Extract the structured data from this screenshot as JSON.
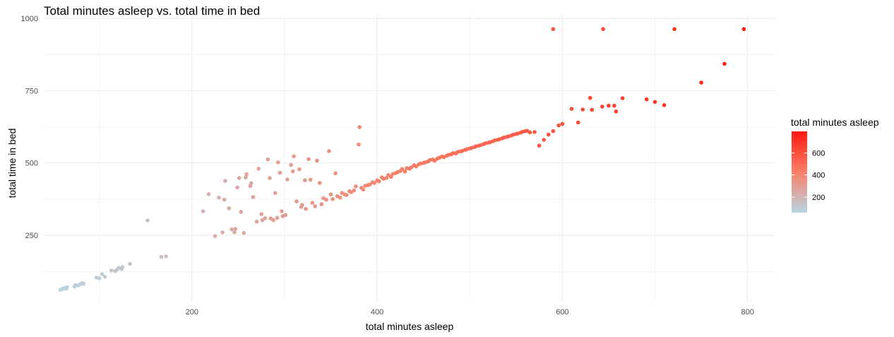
{
  "chart_data": {
    "type": "scatter",
    "title": "Total minutes asleep vs. total time in bed",
    "xlabel": "total minutes asleep",
    "ylabel": "total time in bed",
    "xlim": [
      40,
      830
    ],
    "ylim": [
      20,
      1010
    ],
    "x_ticks": [
      200,
      400,
      600,
      800
    ],
    "x_tick_labels": [
      "200",
      "400",
      "600",
      "800"
    ],
    "y_ticks": [
      250,
      500,
      750,
      1000
    ],
    "y_tick_labels": [
      "250",
      "500",
      "750",
      "1000"
    ],
    "grid": true,
    "legend": {
      "title": "total minutes asleep",
      "position": "right",
      "range": [
        58,
        796
      ],
      "ticks": [
        200,
        400,
        600
      ],
      "tick_labels": [
        "200",
        "400",
        "600"
      ],
      "colors": [
        "#b7d5e2",
        "#fa7f68",
        "#ff1a0d"
      ]
    },
    "points": [
      [
        58,
        61
      ],
      [
        60,
        64
      ],
      [
        62,
        67
      ],
      [
        64,
        65
      ],
      [
        65,
        70
      ],
      [
        73,
        72
      ],
      [
        74,
        78
      ],
      [
        77,
        76
      ],
      [
        79,
        80
      ],
      [
        81,
        84
      ],
      [
        83,
        82
      ],
      [
        97,
        103
      ],
      [
        100,
        101
      ],
      [
        103,
        115
      ],
      [
        106,
        106
      ],
      [
        113,
        128
      ],
      [
        117,
        126
      ],
      [
        119,
        130
      ],
      [
        121,
        137
      ],
      [
        124,
        133
      ],
      [
        125,
        140
      ],
      [
        133,
        151
      ],
      [
        152,
        301
      ],
      [
        167,
        175
      ],
      [
        172,
        177
      ],
      [
        212,
        333
      ],
      [
        218,
        392
      ],
      [
        225,
        247
      ],
      [
        229,
        380
      ],
      [
        233,
        260
      ],
      [
        235,
        373
      ],
      [
        236,
        438
      ],
      [
        240,
        343
      ],
      [
        243,
        270
      ],
      [
        246,
        260
      ],
      [
        247,
        272
      ],
      [
        249,
        415
      ],
      [
        251,
        448
      ],
      [
        253,
        331
      ],
      [
        256,
        258
      ],
      [
        258,
        450
      ],
      [
        259,
        461
      ],
      [
        263,
        420
      ],
      [
        264,
        430
      ],
      [
        266,
        382
      ],
      [
        270,
        297
      ],
      [
        272,
        480
      ],
      [
        275,
        323
      ],
      [
        276,
        302
      ],
      [
        279,
        309
      ],
      [
        282,
        512
      ],
      [
        284,
        448
      ],
      [
        285,
        308
      ],
      [
        288,
        302
      ],
      [
        290,
        396
      ],
      [
        292,
        310
      ],
      [
        293,
        502
      ],
      [
        295,
        466
      ],
      [
        297,
        333
      ],
      [
        298,
        316
      ],
      [
        301,
        320
      ],
      [
        303,
        443
      ],
      [
        307,
        493
      ],
      [
        309,
        471
      ],
      [
        310,
        523
      ],
      [
        313,
        367
      ],
      [
        316,
        478
      ],
      [
        318,
        348
      ],
      [
        319,
        355
      ],
      [
        322,
        440
      ],
      [
        323,
        341
      ],
      [
        326,
        513
      ],
      [
        328,
        442
      ],
      [
        330,
        362
      ],
      [
        333,
        350
      ],
      [
        335,
        508
      ],
      [
        338,
        431
      ],
      [
        340,
        357
      ],
      [
        342,
        378
      ],
      [
        345,
        373
      ],
      [
        348,
        541
      ],
      [
        350,
        391
      ],
      [
        352,
        375
      ],
      [
        355,
        464
      ],
      [
        357,
        385
      ],
      [
        360,
        380
      ],
      [
        362,
        396
      ],
      [
        365,
        391
      ],
      [
        367,
        389
      ],
      [
        370,
        402
      ],
      [
        372,
        399
      ],
      [
        375,
        405
      ],
      [
        377,
        419
      ],
      [
        380,
        564
      ],
      [
        381,
        624
      ],
      [
        383,
        414
      ],
      [
        385,
        408
      ],
      [
        387,
        421
      ],
      [
        390,
        423
      ],
      [
        392,
        425
      ],
      [
        395,
        433
      ],
      [
        397,
        431
      ],
      [
        400,
        440
      ],
      [
        402,
        436
      ],
      [
        405,
        450
      ],
      [
        407,
        445
      ],
      [
        410,
        448
      ],
      [
        412,
        458
      ],
      [
        415,
        452
      ],
      [
        417,
        462
      ],
      [
        420,
        465
      ],
      [
        422,
        468
      ],
      [
        425,
        472
      ],
      [
        427,
        479
      ],
      [
        430,
        470
      ],
      [
        432,
        482
      ],
      [
        435,
        480
      ],
      [
        437,
        485
      ],
      [
        440,
        492
      ],
      [
        442,
        488
      ],
      [
        445,
        495
      ],
      [
        447,
        498
      ],
      [
        450,
        500
      ],
      [
        452,
        502
      ],
      [
        455,
        505
      ],
      [
        457,
        510
      ],
      [
        460,
        512
      ],
      [
        462,
        508
      ],
      [
        465,
        515
      ],
      [
        467,
        518
      ],
      [
        470,
        522
      ],
      [
        472,
        520
      ],
      [
        475,
        525
      ],
      [
        477,
        528
      ],
      [
        480,
        530
      ],
      [
        482,
        534
      ],
      [
        485,
        533
      ],
      [
        487,
        538
      ],
      [
        490,
        540
      ],
      [
        492,
        542
      ],
      [
        495,
        545
      ],
      [
        497,
        548
      ],
      [
        500,
        550
      ],
      [
        502,
        552
      ],
      [
        505,
        555
      ],
      [
        507,
        558
      ],
      [
        510,
        560
      ],
      [
        512,
        562
      ],
      [
        515,
        565
      ],
      [
        517,
        568
      ],
      [
        520,
        570
      ],
      [
        522,
        572
      ],
      [
        525,
        575
      ],
      [
        527,
        578
      ],
      [
        530,
        580
      ],
      [
        532,
        582
      ],
      [
        535,
        585
      ],
      [
        537,
        588
      ],
      [
        540,
        590
      ],
      [
        542,
        592
      ],
      [
        545,
        595
      ],
      [
        547,
        598
      ],
      [
        550,
        600
      ],
      [
        552,
        602
      ],
      [
        555,
        605
      ],
      [
        557,
        608
      ],
      [
        560,
        610
      ],
      [
        562,
        611
      ],
      [
        565,
        606
      ],
      [
        570,
        607
      ],
      [
        575,
        560
      ],
      [
        580,
        580
      ],
      [
        585,
        598
      ],
      [
        590,
        610
      ],
      [
        596,
        630
      ],
      [
        600,
        635
      ],
      [
        610,
        687
      ],
      [
        617,
        640
      ],
      [
        622,
        685
      ],
      [
        630,
        725
      ],
      [
        632,
        684
      ],
      [
        643,
        695
      ],
      [
        650,
        698
      ],
      [
        656,
        698
      ],
      [
        658,
        678
      ],
      [
        665,
        724
      ],
      [
        691,
        720
      ],
      [
        700,
        711
      ],
      [
        710,
        700
      ],
      [
        590,
        963
      ],
      [
        644,
        963
      ],
      [
        721,
        963
      ],
      [
        750,
        778
      ],
      [
        775,
        843
      ],
      [
        796,
        963
      ]
    ]
  }
}
